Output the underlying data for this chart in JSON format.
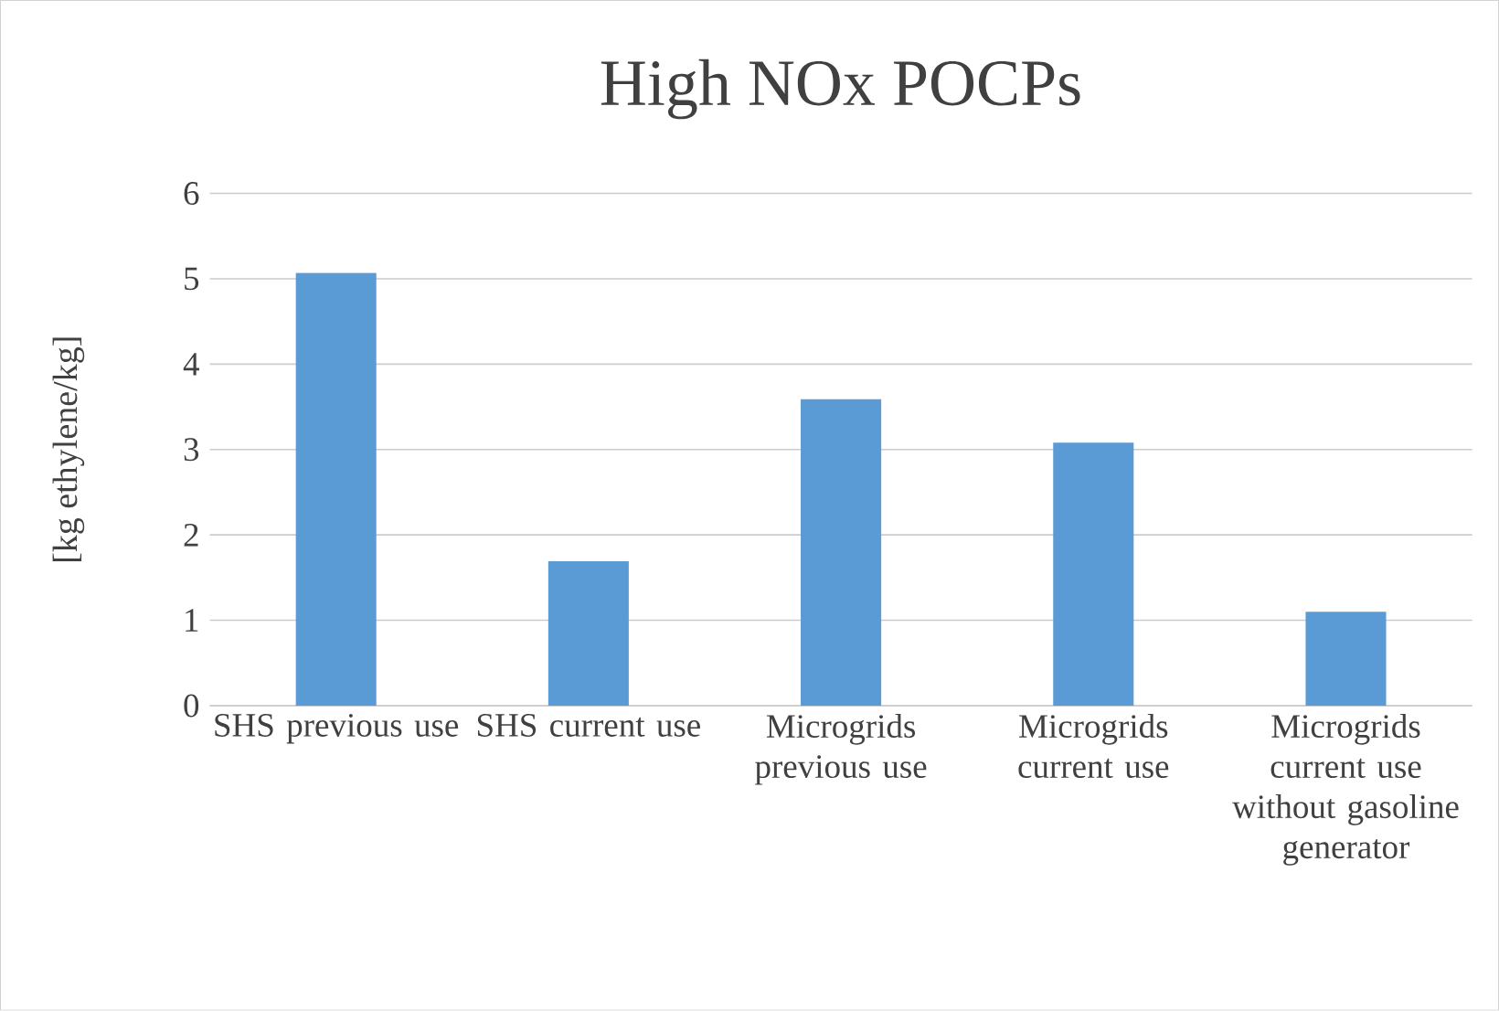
{
  "chart_data": {
    "type": "bar",
    "title": "High NOx POCPs",
    "ylabel": "[kg ethylene/kg]",
    "categories": [
      "SHS previous use",
      "SHS current use",
      "Microgrids previous use",
      "Microgrids current use",
      "Microgrids current use without gasoline generator"
    ],
    "values": [
      5.07,
      1.69,
      3.59,
      3.08,
      1.1
    ],
    "color": "#5b9bd5",
    "ylim": [
      0,
      6
    ],
    "yticks": [
      0,
      1,
      2,
      3,
      4,
      5,
      6
    ],
    "grid": true
  }
}
